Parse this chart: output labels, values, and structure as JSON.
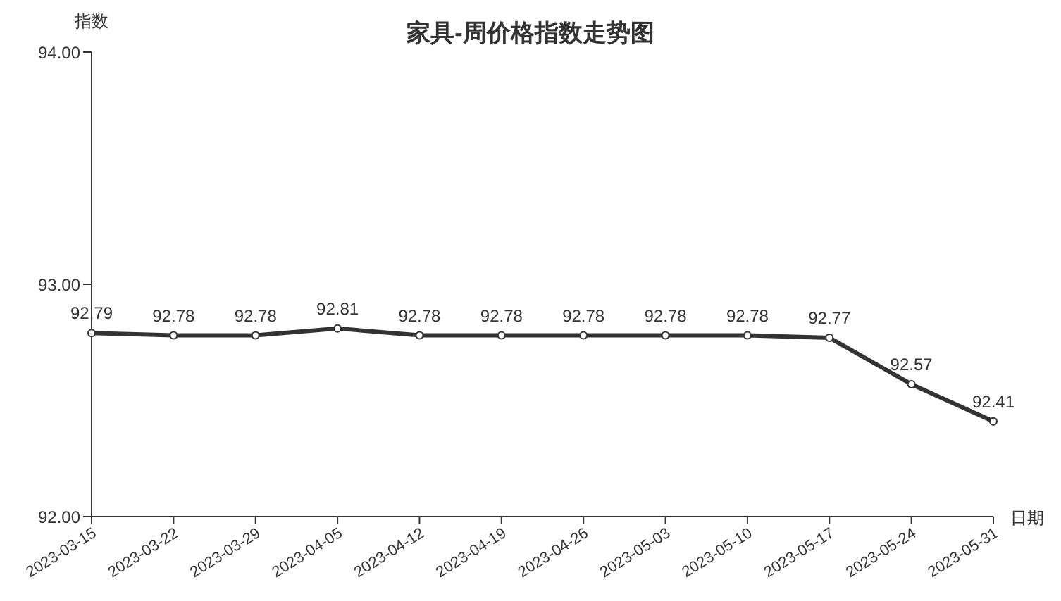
{
  "chart_data": {
    "type": "line",
    "title": "家具-周价格指数走势图",
    "xlabel": "日期",
    "ylabel": "指数",
    "categories": [
      "2023-03-15",
      "2023-03-22",
      "2023-03-29",
      "2023-04-05",
      "2023-04-12",
      "2023-04-19",
      "2023-04-26",
      "2023-05-03",
      "2023-05-10",
      "2023-05-17",
      "2023-05-24",
      "2023-05-31"
    ],
    "series": [
      {
        "color": "#333333",
        "values": [
          92.79,
          92.78,
          92.78,
          92.81,
          92.78,
          92.78,
          92.78,
          92.78,
          92.78,
          92.77,
          92.57,
          92.41
        ]
      }
    ],
    "ylim": [
      92,
      94
    ],
    "yticks": [
      {
        "value": 92,
        "label": "92.00"
      },
      {
        "value": 93,
        "label": "93.00"
      },
      {
        "value": 94,
        "label": "94.00"
      }
    ],
    "grid": false,
    "legend": false,
    "marker": "circle",
    "line_style": "solid",
    "data_labels": true
  }
}
